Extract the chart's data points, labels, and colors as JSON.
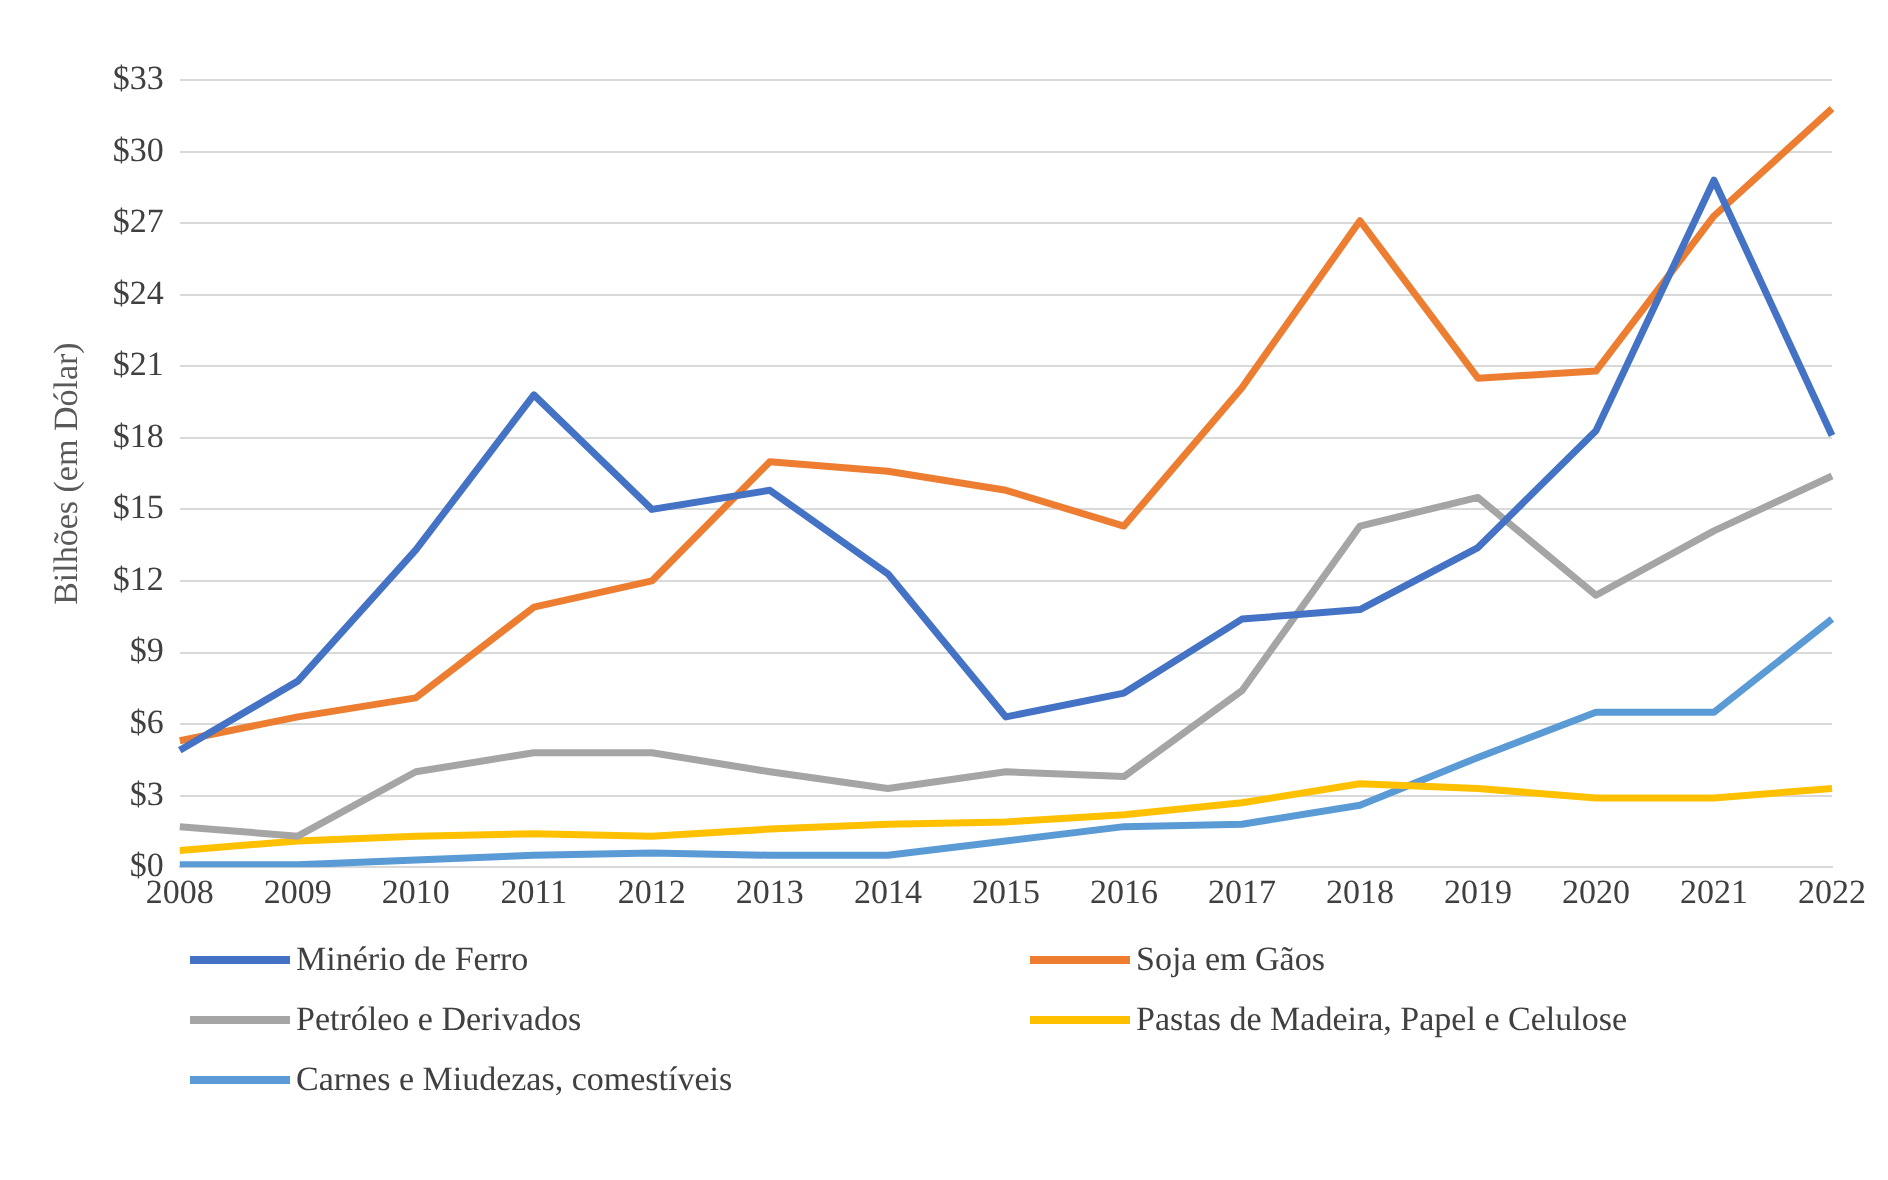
{
  "chart_data": {
    "type": "line",
    "ylabel": "Bilhões (em Dólar)",
    "categories": [
      "2008",
      "2009",
      "2010",
      "2011",
      "2012",
      "2013",
      "2014",
      "2015",
      "2016",
      "2017",
      "2018",
      "2019",
      "2020",
      "2021",
      "2022"
    ],
    "series": [
      {
        "name": "Minério de Ferro",
        "color": "#4472c4",
        "values": [
          4.9,
          7.8,
          13.3,
          19.8,
          15,
          15.8,
          12.3,
          6.3,
          7.3,
          10.4,
          10.8,
          13.4,
          18.3,
          28.8,
          18.1
        ]
      },
      {
        "name": "Soja em Gãos",
        "color": "#ed7d31",
        "values": [
          5.3,
          6.3,
          7.1,
          10.9,
          12,
          17,
          16.6,
          15.8,
          14.3,
          20.1,
          27.1,
          20.5,
          20.8,
          27.3,
          31.8
        ]
      },
      {
        "name": "Petróleo e Derivados",
        "color": "#a5a5a5",
        "values": [
          1.7,
          1.3,
          4,
          4.8,
          4.8,
          4,
          3.3,
          4,
          3.8,
          7.4,
          14.3,
          15.5,
          11.4,
          14.1,
          16.4
        ]
      },
      {
        "name": "Pastas de Madeira, Papel e Celulose",
        "color": "#ffc000",
        "values": [
          0.7,
          1.1,
          1.3,
          1.4,
          1.3,
          1.6,
          1.8,
          1.9,
          2.2,
          2.7,
          3.5,
          3.3,
          2.9,
          2.9,
          3.3
        ]
      },
      {
        "name": "Carnes e Miudezas, comestíveis",
        "color": "#5b9bd5",
        "values": [
          0.1,
          0.1,
          0.3,
          0.5,
          0.6,
          0.5,
          0.5,
          1.1,
          1.7,
          1.8,
          2.6,
          4.6,
          6.5,
          6.5,
          10.4
        ]
      }
    ],
    "ylim": [
      0,
      33
    ],
    "yticks": [
      {
        "value": 0,
        "label": "$0"
      },
      {
        "value": 3,
        "label": "$3"
      },
      {
        "value": 6,
        "label": "$6"
      },
      {
        "value": 9,
        "label": "$9"
      },
      {
        "value": 12,
        "label": "$12"
      },
      {
        "value": 15,
        "label": "$15"
      },
      {
        "value": 18,
        "label": "$18"
      },
      {
        "value": 21,
        "label": "$21"
      },
      {
        "value": 24,
        "label": "$24"
      },
      {
        "value": 27,
        "label": "$27"
      },
      {
        "value": 30,
        "label": "$30"
      },
      {
        "value": 33,
        "label": "$33"
      }
    ],
    "grid": "y",
    "legend": "bottom",
    "marker": "none",
    "line_style": "solid"
  }
}
